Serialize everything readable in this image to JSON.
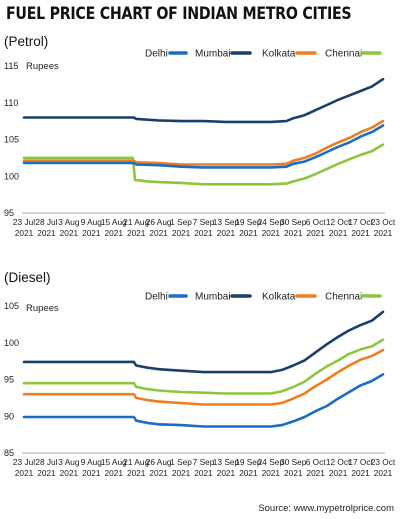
{
  "title": "FUEL PRICE CHART OF INDIAN METRO CITIES",
  "source": "Source: www.mypetrolprice.com",
  "colors": {
    "Delhi": "#1a6cc4",
    "Mumbai": "#1b3f6b",
    "Kolkata": "#f07d1b",
    "Chennai": "#8cc63e"
  },
  "chart_data": [
    {
      "type": "line",
      "title": "(Petrol)",
      "ylabel": "Rupees",
      "ylim": [
        95,
        115
      ],
      "yticks": [
        95,
        100,
        105,
        110,
        115
      ],
      "x_labels": [
        [
          "23 Jul",
          "2021"
        ],
        [
          "28 Jul",
          "2021"
        ],
        [
          "3 Aug",
          "2021"
        ],
        [
          "9 Aug",
          "2021"
        ],
        [
          "15 Aug",
          "2021"
        ],
        [
          "21 Aug",
          "2021"
        ],
        [
          "26 Aug",
          "2021"
        ],
        [
          "1 Sep",
          "2021"
        ],
        [
          "7 Sep",
          "2021"
        ],
        [
          "13 Sep",
          "2021"
        ],
        [
          "19 Sep",
          "2021"
        ],
        [
          "24 Sep",
          "2021"
        ],
        [
          "30 Sep",
          "2021"
        ],
        [
          "6 Oct",
          "2021"
        ],
        [
          "12 Oct",
          "2021"
        ],
        [
          "17 Oct",
          "2021"
        ],
        [
          "23 Oct",
          "2021"
        ]
      ],
      "legend": [
        "Delhi",
        "Mumbai",
        "Kolkata",
        "Chennai"
      ],
      "legend_position": "top-right",
      "grid": false,
      "series": [
        {
          "name": "Delhi",
          "color": "#1a6cc4",
          "points": [
            [
              0,
              101.8
            ],
            [
              4.9,
              101.8
            ],
            [
              5.0,
              101.6
            ],
            [
              6.0,
              101.5
            ],
            [
              7.0,
              101.3
            ],
            [
              8.0,
              101.2
            ],
            [
              9.0,
              101.2
            ],
            [
              10.0,
              101.2
            ],
            [
              11.0,
              101.2
            ],
            [
              11.7,
              101.3
            ],
            [
              12.0,
              101.7
            ],
            [
              12.5,
              102.0
            ],
            [
              13.0,
              102.6
            ],
            [
              13.5,
              103.3
            ],
            [
              14.0,
              104.0
            ],
            [
              14.5,
              104.6
            ],
            [
              15.0,
              105.4
            ],
            [
              15.5,
              106.0
            ],
            [
              16.0,
              106.9
            ]
          ]
        },
        {
          "name": "Mumbai",
          "color": "#1b3f6b",
          "points": [
            [
              0,
              108.0
            ],
            [
              4.9,
              108.0
            ],
            [
              5.0,
              107.8
            ],
            [
              6.0,
              107.6
            ],
            [
              7.0,
              107.5
            ],
            [
              8.0,
              107.5
            ],
            [
              9.0,
              107.4
            ],
            [
              10.0,
              107.4
            ],
            [
              11.0,
              107.4
            ],
            [
              11.7,
              107.5
            ],
            [
              12.0,
              107.9
            ],
            [
              12.5,
              108.3
            ],
            [
              13.0,
              109.0
            ],
            [
              13.5,
              109.7
            ],
            [
              14.0,
              110.4
            ],
            [
              14.5,
              111.0
            ],
            [
              15.0,
              111.6
            ],
            [
              15.5,
              112.2
            ],
            [
              16.0,
              113.2
            ]
          ]
        },
        {
          "name": "Kolkata",
          "color": "#f07d1b",
          "points": [
            [
              0,
              102.1
            ],
            [
              4.9,
              102.1
            ],
            [
              5.0,
              101.9
            ],
            [
              6.0,
              101.8
            ],
            [
              7.0,
              101.6
            ],
            [
              8.0,
              101.6
            ],
            [
              9.0,
              101.6
            ],
            [
              10.0,
              101.6
            ],
            [
              11.0,
              101.6
            ],
            [
              11.7,
              101.7
            ],
            [
              12.0,
              102.1
            ],
            [
              12.5,
              102.5
            ],
            [
              13.0,
              103.1
            ],
            [
              13.5,
              103.9
            ],
            [
              14.0,
              104.6
            ],
            [
              14.5,
              105.2
            ],
            [
              15.0,
              106.0
            ],
            [
              15.5,
              106.6
            ],
            [
              16.0,
              107.5
            ]
          ]
        },
        {
          "name": "Chennai",
          "color": "#8cc63e",
          "points": [
            [
              0,
              102.5
            ],
            [
              4.85,
              102.5
            ],
            [
              4.95,
              99.5
            ],
            [
              5.5,
              99.3
            ],
            [
              6.0,
              99.2
            ],
            [
              7.0,
              99.1
            ],
            [
              8.0,
              98.9
            ],
            [
              9.0,
              98.9
            ],
            [
              10.0,
              98.9
            ],
            [
              11.0,
              98.9
            ],
            [
              11.7,
              99.0
            ],
            [
              12.0,
              99.3
            ],
            [
              12.5,
              99.7
            ],
            [
              13.0,
              100.3
            ],
            [
              13.5,
              101.0
            ],
            [
              14.0,
              101.7
            ],
            [
              14.5,
              102.3
            ],
            [
              15.0,
              102.9
            ],
            [
              15.5,
              103.4
            ],
            [
              16.0,
              104.3
            ]
          ]
        }
      ]
    },
    {
      "type": "line",
      "title": "(Diesel)",
      "ylabel": "Rupees",
      "ylim": [
        85,
        105
      ],
      "yticks": [
        85,
        90,
        95,
        100,
        105
      ],
      "x_labels": [
        [
          "23 Jul",
          "2021"
        ],
        [
          "28 Jul",
          "2021"
        ],
        [
          "3 Aug",
          "2021"
        ],
        [
          "9 Aug",
          "2021"
        ],
        [
          "15 Aug",
          "2021"
        ],
        [
          "21 Aug",
          "2021"
        ],
        [
          "26 Aug",
          "2021"
        ],
        [
          "1 Sep",
          "2021"
        ],
        [
          "7 Sep",
          "2021"
        ],
        [
          "13 Sep",
          "2021"
        ],
        [
          "19 Sep",
          "2021"
        ],
        [
          "24 Sep",
          "2021"
        ],
        [
          "30 Sep",
          "2021"
        ],
        [
          "6 Oct",
          "2021"
        ],
        [
          "12 Oct",
          "2021"
        ],
        [
          "17 Oct",
          "2021"
        ],
        [
          "23 Oct",
          "2021"
        ]
      ],
      "legend": [
        "Delhi",
        "Mumbai",
        "Kolkata",
        "Chennai"
      ],
      "legend_position": "top-right",
      "grid": false,
      "series": [
        {
          "name": "Delhi",
          "color": "#1a6cc4",
          "points": [
            [
              0,
              89.9
            ],
            [
              4.9,
              89.9
            ],
            [
              5.0,
              89.4
            ],
            [
              5.5,
              89.1
            ],
            [
              6.0,
              88.9
            ],
            [
              7.0,
              88.8
            ],
            [
              8.0,
              88.6
            ],
            [
              9.0,
              88.6
            ],
            [
              10.0,
              88.6
            ],
            [
              11.0,
              88.6
            ],
            [
              11.5,
              88.8
            ],
            [
              12.0,
              89.3
            ],
            [
              12.5,
              89.9
            ],
            [
              13.0,
              90.7
            ],
            [
              13.5,
              91.4
            ],
            [
              14.0,
              92.4
            ],
            [
              14.5,
              93.3
            ],
            [
              15.0,
              94.2
            ],
            [
              15.5,
              94.8
            ],
            [
              16.0,
              95.7
            ]
          ]
        },
        {
          "name": "Mumbai",
          "color": "#1b3f6b",
          "points": [
            [
              0,
              97.4
            ],
            [
              4.9,
              97.4
            ],
            [
              5.0,
              96.9
            ],
            [
              5.5,
              96.6
            ],
            [
              6.0,
              96.4
            ],
            [
              7.0,
              96.2
            ],
            [
              8.0,
              96.0
            ],
            [
              9.0,
              96.0
            ],
            [
              10.0,
              96.0
            ],
            [
              11.0,
              96.0
            ],
            [
              11.5,
              96.3
            ],
            [
              12.0,
              96.9
            ],
            [
              12.5,
              97.6
            ],
            [
              13.0,
              98.7
            ],
            [
              13.5,
              99.8
            ],
            [
              14.0,
              100.8
            ],
            [
              14.5,
              101.7
            ],
            [
              15.0,
              102.4
            ],
            [
              15.5,
              103.0
            ],
            [
              16.0,
              104.2
            ]
          ]
        },
        {
          "name": "Kolkata",
          "color": "#f07d1b",
          "points": [
            [
              0,
              93.0
            ],
            [
              4.9,
              93.0
            ],
            [
              5.0,
              92.5
            ],
            [
              5.5,
              92.2
            ],
            [
              6.0,
              92.0
            ],
            [
              7.0,
              91.8
            ],
            [
              8.0,
              91.6
            ],
            [
              9.0,
              91.6
            ],
            [
              10.0,
              91.6
            ],
            [
              11.0,
              91.6
            ],
            [
              11.5,
              91.8
            ],
            [
              12.0,
              92.4
            ],
            [
              12.5,
              93.1
            ],
            [
              13.0,
              94.1
            ],
            [
              13.5,
              95.0
            ],
            [
              14.0,
              96.0
            ],
            [
              14.5,
              96.9
            ],
            [
              15.0,
              97.7
            ],
            [
              15.5,
              98.2
            ],
            [
              16.0,
              99.0
            ]
          ]
        },
        {
          "name": "Chennai",
          "color": "#8cc63e",
          "points": [
            [
              0,
              94.5
            ],
            [
              4.9,
              94.5
            ],
            [
              5.0,
              94.0
            ],
            [
              5.5,
              93.7
            ],
            [
              6.0,
              93.5
            ],
            [
              7.0,
              93.3
            ],
            [
              8.0,
              93.2
            ],
            [
              9.0,
              93.1
            ],
            [
              10.0,
              93.1
            ],
            [
              11.0,
              93.1
            ],
            [
              11.5,
              93.4
            ],
            [
              12.0,
              94.0
            ],
            [
              12.5,
              94.7
            ],
            [
              13.0,
              95.8
            ],
            [
              13.5,
              96.8
            ],
            [
              14.0,
              97.6
            ],
            [
              14.5,
              98.5
            ],
            [
              15.0,
              99.1
            ],
            [
              15.5,
              99.5
            ],
            [
              16.0,
              100.4
            ]
          ]
        }
      ]
    }
  ]
}
